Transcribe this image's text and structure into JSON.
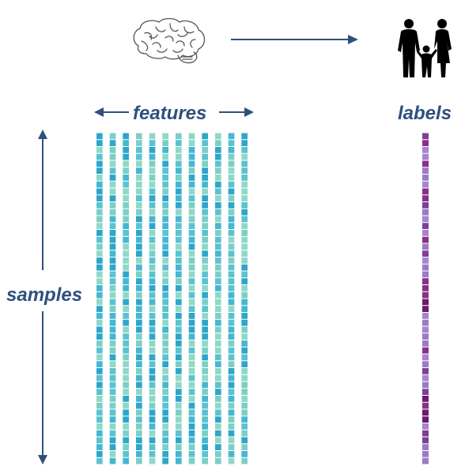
{
  "axes": {
    "features": "features",
    "labels": "labels",
    "samples": "samples"
  },
  "icons": {
    "input": "brain-icon",
    "output": "family-icon"
  },
  "colors": {
    "text": "#2f4f7f",
    "arrow": "#2f4f7f",
    "feature_palette": [
      "#8fd8c8",
      "#5bc3cf",
      "#2ea6c9",
      "#7ccfc6",
      "#45b7d1"
    ],
    "label_palette": [
      "#9a7bc6",
      "#7e3f98",
      "#6a1b6e",
      "#a884cc",
      "#8b2f87"
    ]
  },
  "matrix": {
    "feature_columns": 12,
    "sample_rows": 48
  }
}
